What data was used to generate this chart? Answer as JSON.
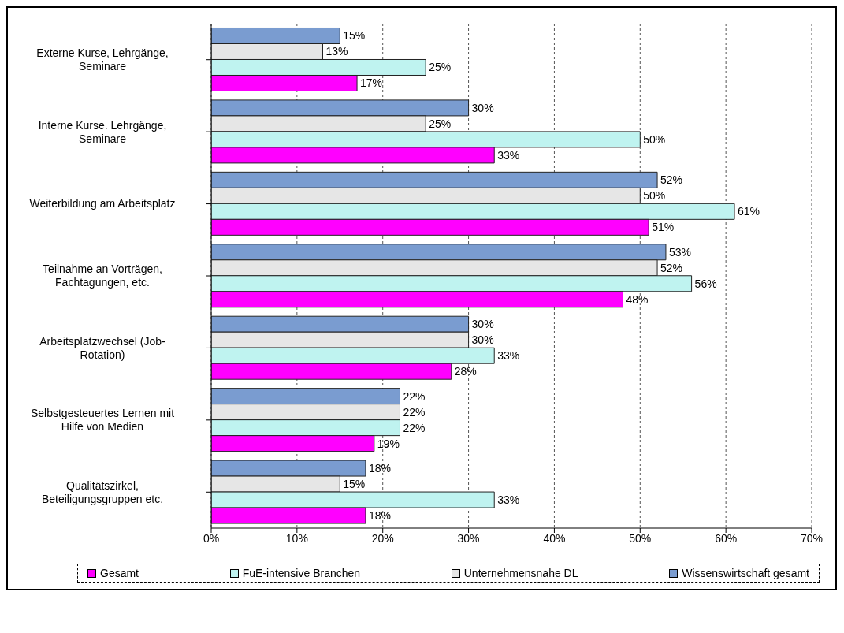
{
  "chart_data": {
    "type": "bar",
    "orientation": "horizontal",
    "categories": [
      "Externe Kurse, Lehrgänge, Seminare",
      "Interne Kurse. Lehrgänge, Seminare",
      "Weiterbildung am Arbeitsplatz",
      "Teilnahme an Vorträgen, Fachtagungen, etc.",
      "Arbeitsplatzwechsel (Job-Rotation)",
      "Selbstgesteuertes Lernen mit Hilfe von Medien",
      "Qualitätszirkel, Beteiligungsgruppen etc."
    ],
    "series": [
      {
        "name": "Gesamt",
        "color": "#ff00ff",
        "values": [
          17,
          33,
          51,
          48,
          28,
          19,
          18
        ],
        "value_labels": [
          "17%",
          "33%",
          "51%",
          "48%",
          "28%",
          "19%",
          "18%"
        ]
      },
      {
        "name": "FuE-intensive Branchen",
        "color": "#bff3f0",
        "values": [
          25,
          50,
          61,
          56,
          33,
          22,
          33
        ],
        "value_labels": [
          "25%",
          "50%",
          "61%",
          "56%",
          "33%",
          "22%",
          "33%"
        ]
      },
      {
        "name": "Unternehmensnahe DL",
        "color": "#e6e6e6",
        "values": [
          13,
          25,
          50,
          52,
          30,
          22,
          15
        ],
        "value_labels": [
          "13%",
          "25%",
          "50%",
          "52%",
          "30%",
          "22%",
          "15%"
        ]
      },
      {
        "name": "Wissenswirtschaft gesamt",
        "color": "#7a9cd0",
        "values": [
          15,
          30,
          52,
          53,
          30,
          22,
          18
        ],
        "value_labels": [
          "15%",
          "30%",
          "52%",
          "53%",
          "30%",
          "22%",
          "18%"
        ]
      }
    ],
    "xlim": [
      0,
      70
    ],
    "xticks": [
      {
        "value": 0,
        "label": "0%"
      },
      {
        "value": 10,
        "label": "10%"
      },
      {
        "value": 20,
        "label": "20%"
      },
      {
        "value": 30,
        "label": "30%"
      },
      {
        "value": 40,
        "label": "40%"
      },
      {
        "value": 50,
        "label": "50%"
      },
      {
        "value": 60,
        "label": "60%"
      },
      {
        "value": 70,
        "label": "70%"
      }
    ],
    "grid": "x",
    "legend": "bottom"
  }
}
